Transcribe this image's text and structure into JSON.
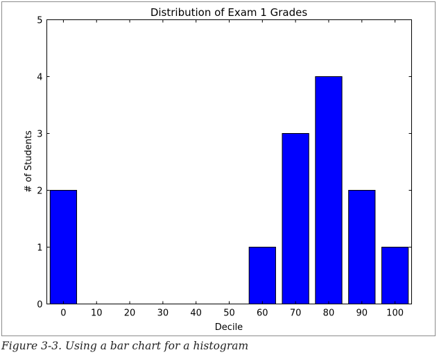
{
  "chart_data": {
    "type": "bar",
    "title": "Distribution of Exam 1 Grades",
    "xlabel": "Decile",
    "ylabel": "# of Students",
    "categories": [
      "0",
      "10",
      "20",
      "30",
      "40",
      "50",
      "60",
      "70",
      "80",
      "90",
      "100"
    ],
    "x": [
      0,
      10,
      20,
      30,
      40,
      50,
      60,
      70,
      80,
      90,
      100
    ],
    "values": [
      2,
      0,
      0,
      0,
      0,
      0,
      1,
      3,
      4,
      2,
      1
    ],
    "xlim": [
      -5,
      105
    ],
    "ylim": [
      0,
      5
    ],
    "yticks": [
      0,
      1,
      2,
      3,
      4,
      5
    ],
    "bar_width": 8,
    "grid": false,
    "legend": "none",
    "colors": {
      "bar": "#0000ff",
      "edge": "#000000"
    }
  },
  "caption": "Figure 3-3. Using a bar chart for a histogram"
}
